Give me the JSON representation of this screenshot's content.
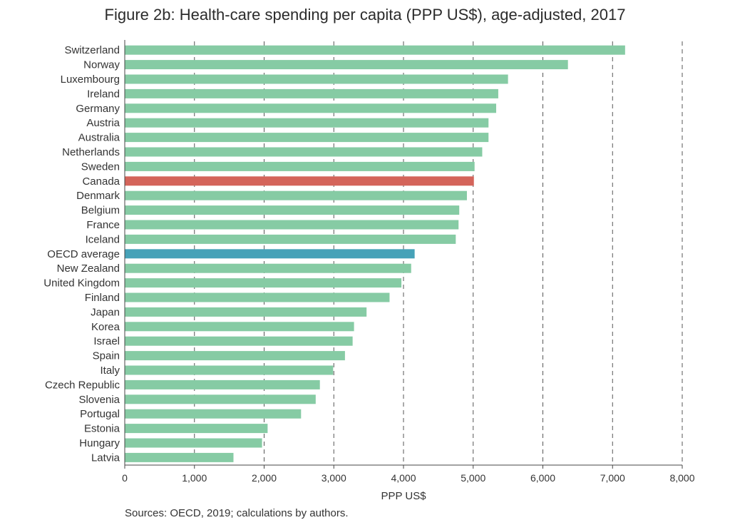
{
  "chart_data": {
    "type": "bar",
    "orientation": "horizontal",
    "title": "Figure 2b: Health-care spending per capita (PPP US$), age-adjusted, 2017",
    "xlabel": "PPP US$",
    "ylabel": "",
    "xlim": [
      0,
      8000
    ],
    "xticks": [
      "0",
      "1,000",
      "2,000",
      "3,000",
      "4,000",
      "5,000",
      "6,000",
      "7,000",
      "8,000"
    ],
    "grid": "vertical dashed",
    "categories": [
      "Switzerland",
      "Norway",
      "Luxembourg",
      "Ireland",
      "Germany",
      "Austria",
      "Australia",
      "Netherlands",
      "Sweden",
      "Canada",
      "Denmark",
      "Belgium",
      "France",
      "Iceland",
      "OECD average",
      "New Zealand",
      "United Kingdom",
      "Finland",
      "Japan",
      "Korea",
      "Israel",
      "Spain",
      "Italy",
      "Czech Republic",
      "Slovenia",
      "Portugal",
      "Estonia",
      "Hungary",
      "Latvia"
    ],
    "values": [
      7180,
      6360,
      5500,
      5360,
      5330,
      5220,
      5220,
      5130,
      5020,
      5010,
      4910,
      4800,
      4790,
      4750,
      4160,
      4110,
      3970,
      3800,
      3470,
      3290,
      3270,
      3160,
      2990,
      2800,
      2740,
      2530,
      2050,
      1970,
      1560
    ],
    "colors": {
      "default": "#86cba4",
      "Canada": "#d4645a",
      "OECD average": "#46a2b8"
    }
  },
  "source": "Sources: OECD, 2019; calculations by authors."
}
